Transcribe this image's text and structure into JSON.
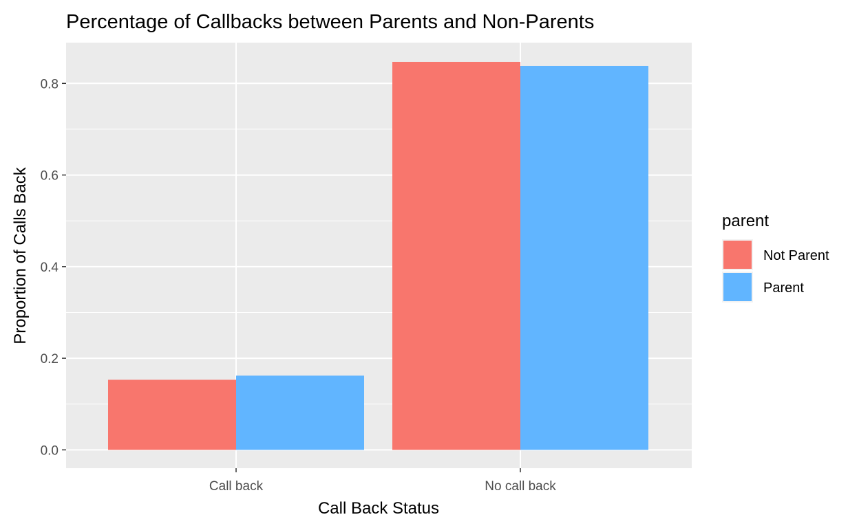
{
  "chart_data": {
    "type": "bar",
    "title": "Percentage of Callbacks between Parents and Non-Parents",
    "xlabel": "Call Back Status",
    "ylabel": "Proportion of Calls Back",
    "categories": [
      "Call back",
      "No call back"
    ],
    "series": [
      {
        "name": "Not Parent",
        "color": "#f8766d",
        "values": [
          0.153,
          0.847
        ]
      },
      {
        "name": "Parent",
        "color": "#61b5ff",
        "values": [
          0.162,
          0.838
        ]
      }
    ],
    "ylim": [
      -0.04,
      0.889
    ],
    "yticks": [
      0.0,
      0.2,
      0.4,
      0.6,
      0.8
    ],
    "ytick_labels": [
      "0.0",
      "0.2",
      "0.4",
      "0.6",
      "0.8"
    ],
    "grid": true,
    "legend": {
      "title": "parent",
      "position": "right"
    },
    "panel_background": "#ebebeb"
  }
}
